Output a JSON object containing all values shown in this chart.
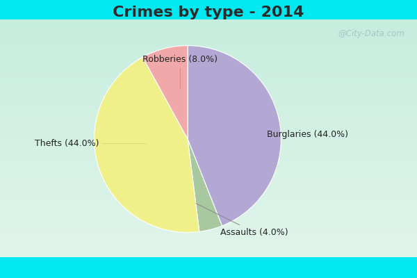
{
  "title": "Crimes by type - 2014",
  "slices": [
    {
      "label": "Burglaries",
      "pct": 44.0,
      "color": "#b3a8d4"
    },
    {
      "label": "Assaults",
      "pct": 4.0,
      "color": "#a8c9a0"
    },
    {
      "label": "Thefts",
      "pct": 44.0,
      "color": "#f0f08a"
    },
    {
      "label": "Robberies",
      "pct": 8.0,
      "color": "#f0a8a8"
    }
  ],
  "bg_cyan": "#00e8f0",
  "bg_grad_top": "#c8ede0",
  "bg_grad_bottom": "#d8f0e8",
  "title_fontsize": 16,
  "label_fontsize": 9,
  "watermark": "@City-Data.com",
  "title_color": "#2a2a2a",
  "label_color": "#222222",
  "cyan_bar_height": 0.09
}
